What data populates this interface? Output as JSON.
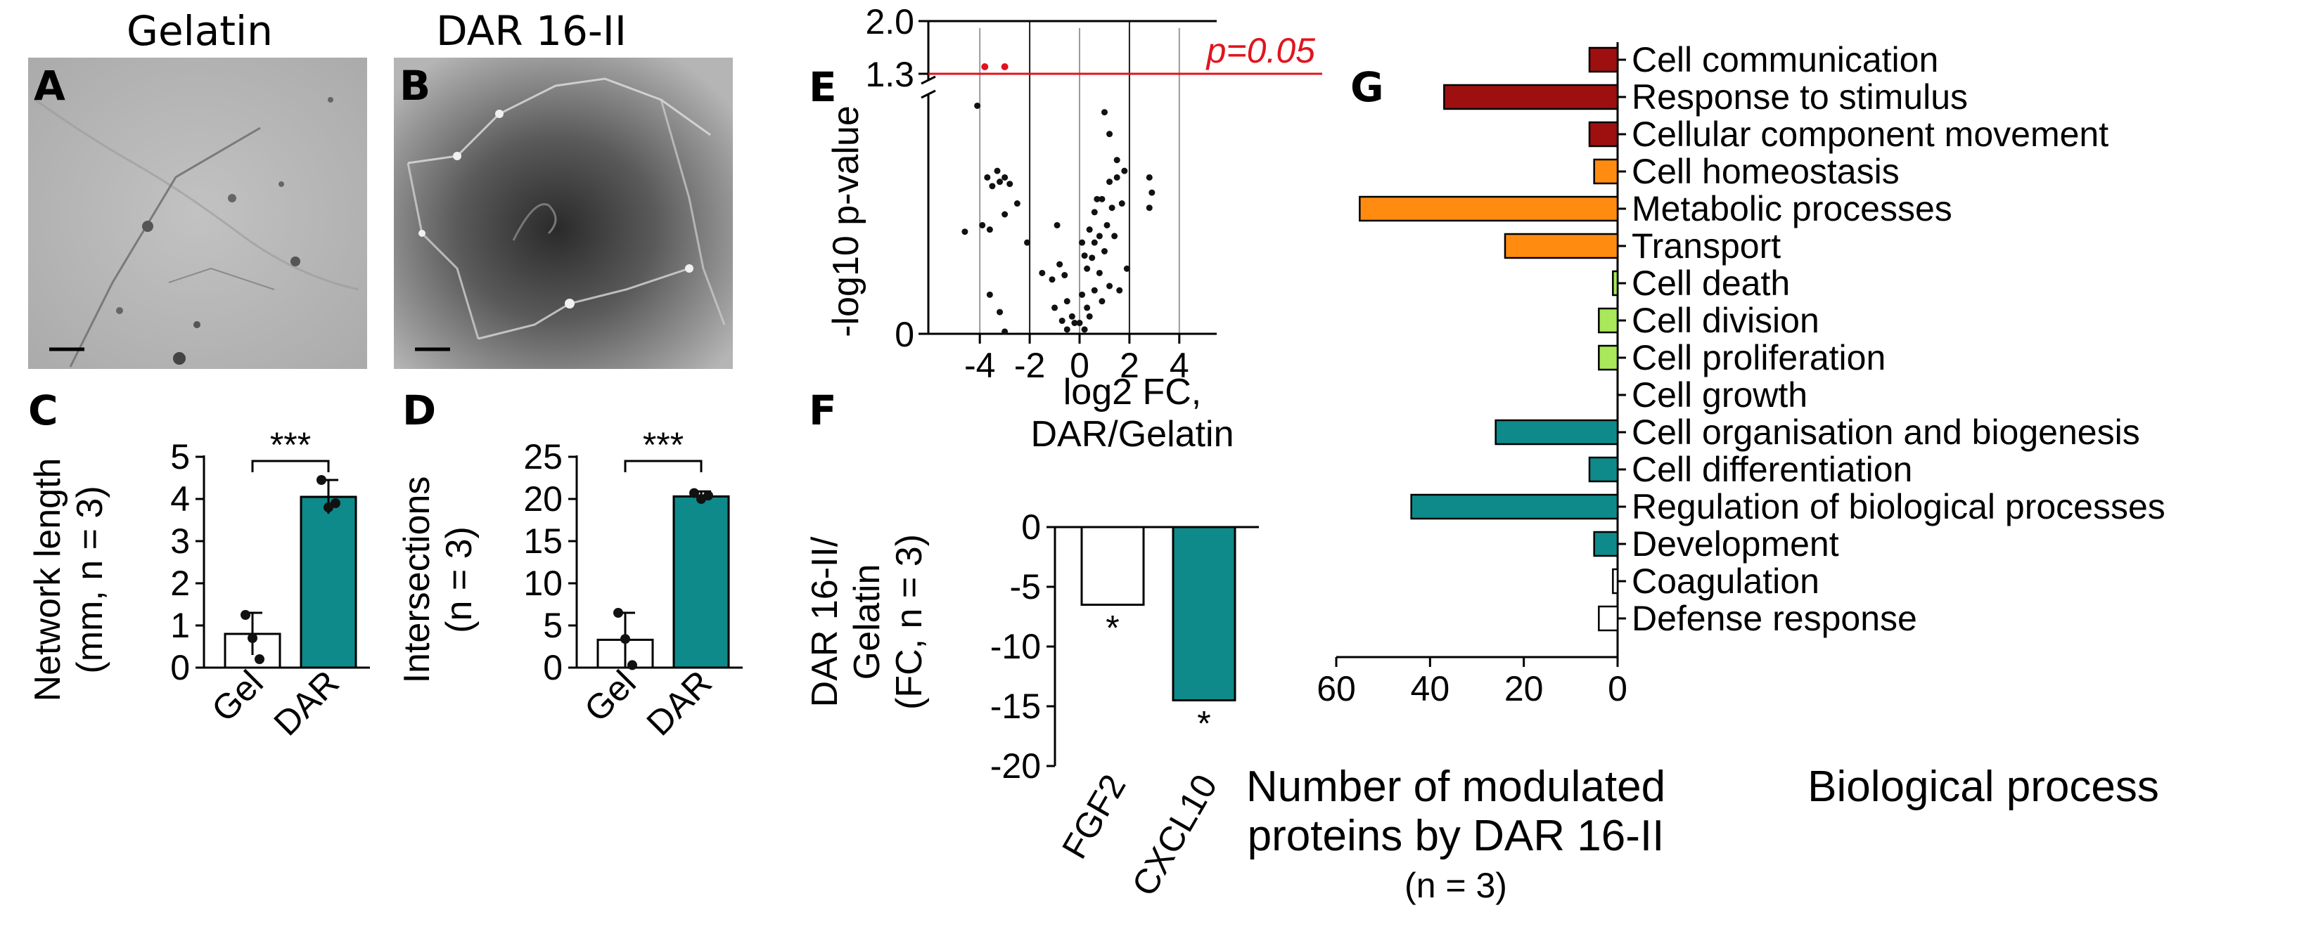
{
  "panels": {
    "A": {
      "letter": "A",
      "title": "Gelatin"
    },
    "B": {
      "letter": "B",
      "title": "DAR 16-II"
    },
    "C": {
      "letter": "C"
    },
    "D": {
      "letter": "D"
    },
    "E": {
      "letter": "E"
    },
    "F": {
      "letter": "F"
    },
    "G": {
      "letter": "G"
    }
  },
  "colors": {
    "teal": "#0e8a8a",
    "dark_red": "#9e1010",
    "orange": "#ff8c10",
    "light_green": "#a8e85a",
    "white": "#ffffff",
    "pvalue_line": "#e0141e"
  },
  "chart_data": [
    {
      "id": "C",
      "type": "bar",
      "ylabel_line1": "Network length",
      "ylabel_line2": "(mm, n = 3)",
      "categories": [
        "Gel",
        "DAR"
      ],
      "values": [
        0.8,
        4.05
      ],
      "errors": [
        0.5,
        0.4
      ],
      "points": [
        [
          1.25,
          0.7,
          0.2
        ],
        [
          4.45,
          3.8,
          3.9
        ]
      ],
      "ylim": [
        0,
        5
      ],
      "yticks": [
        0,
        1,
        2,
        3,
        4,
        5
      ],
      "significance": "***"
    },
    {
      "id": "D",
      "type": "bar",
      "ylabel_line1": "Intersections",
      "ylabel_line2": "(n = 3)",
      "categories": [
        "Gel",
        "DAR"
      ],
      "values": [
        3.3,
        20.3
      ],
      "errors": [
        3.2,
        0.6
      ],
      "points": [
        [
          6.5,
          3.4,
          0.3
        ],
        [
          20.7,
          20.0,
          20.4
        ]
      ],
      "ylim": [
        0,
        25
      ],
      "yticks": [
        0,
        5,
        10,
        15,
        20,
        25
      ],
      "significance": "***"
    },
    {
      "id": "E",
      "type": "scatter",
      "ylabel": "-log10 p-value",
      "xlabel_line1": "log2 FC,",
      "xlabel_line2": "DAR/Gelatin",
      "xlim": [
        -5.5,
        5.5
      ],
      "xticks": [
        -4,
        -2,
        0,
        2,
        4
      ],
      "yticks": [
        "0",
        "1.3",
        "2.0"
      ],
      "threshold_label": "p=0.05",
      "significant_points": [
        [
          -3.8,
          1.35
        ],
        [
          -3.0,
          1.33
        ]
      ],
      "points": [
        [
          -4.1,
          1.05
        ],
        [
          -3.7,
          0.72
        ],
        [
          -3.5,
          0.68
        ],
        [
          -3.3,
          0.75
        ],
        [
          -3.2,
          0.7
        ],
        [
          -3.0,
          0.72
        ],
        [
          -2.8,
          0.69
        ],
        [
          -3.6,
          0.48
        ],
        [
          -3.0,
          0.55
        ],
        [
          -3.9,
          0.5
        ],
        [
          -4.6,
          0.47
        ],
        [
          -2.5,
          0.6
        ],
        [
          -2.1,
          0.42
        ],
        [
          -3.2,
          0.1
        ],
        [
          -3.0,
          0.01
        ],
        [
          -3.6,
          0.18
        ],
        [
          -1.5,
          0.28
        ],
        [
          -1.1,
          0.25
        ],
        [
          -0.8,
          0.32
        ],
        [
          -0.6,
          0.27
        ],
        [
          -1.0,
          0.12
        ],
        [
          -0.5,
          0.15
        ],
        [
          -0.3,
          0.08
        ],
        [
          -0.2,
          0.05
        ],
        [
          0.0,
          0.05
        ],
        [
          -0.5,
          0.02
        ],
        [
          -0.7,
          0.06
        ],
        [
          0.2,
          0.02
        ],
        [
          0.4,
          0.08
        ],
        [
          0.1,
          0.18
        ],
        [
          0.3,
          0.3
        ],
        [
          0.6,
          0.2
        ],
        [
          0.8,
          0.28
        ],
        [
          0.2,
          0.36
        ],
        [
          0.4,
          0.48
        ],
        [
          0.6,
          0.56
        ],
        [
          0.9,
          0.62
        ],
        [
          1.2,
          0.7
        ],
        [
          1.5,
          0.8
        ],
        [
          1.3,
          0.58
        ],
        [
          1.1,
          0.5
        ],
        [
          0.8,
          0.45
        ],
        [
          0.6,
          0.42
        ],
        [
          1.0,
          1.02
        ],
        [
          1.2,
          0.92
        ],
        [
          1.5,
          0.72
        ],
        [
          1.7,
          0.6
        ],
        [
          1.4,
          0.45
        ],
        [
          1.9,
          0.3
        ],
        [
          1.6,
          0.2
        ],
        [
          1.2,
          0.22
        ],
        [
          0.9,
          0.15
        ],
        [
          2.8,
          0.72
        ],
        [
          2.9,
          0.65
        ],
        [
          2.8,
          0.58
        ],
        [
          1.8,
          0.75
        ],
        [
          0.5,
          0.35
        ],
        [
          0.7,
          0.62
        ],
        [
          1.0,
          0.38
        ],
        [
          0.1,
          0.42
        ],
        [
          0.3,
          0.12
        ],
        [
          -0.9,
          0.5
        ]
      ]
    },
    {
      "id": "F",
      "type": "bar",
      "ylabel_line1": "DAR 16-II/",
      "ylabel_line2": "Gelatin",
      "ylabel_line3": "(FC, n = 3)",
      "categories": [
        "FGF2",
        "CXCL10"
      ],
      "values": [
        -6.5,
        -14.5
      ],
      "ylim": [
        -20,
        0
      ],
      "yticks": [
        0,
        -5,
        -10,
        -15,
        -20
      ],
      "significance": [
        "*",
        "*"
      ]
    },
    {
      "id": "G",
      "type": "bar",
      "orientation": "horizontal",
      "xlim": [
        0,
        60
      ],
      "xticks": [
        60,
        40,
        20,
        0
      ],
      "xlabel_line1": "Number of modulated",
      "xlabel_line2": "proteins by DAR 16-II",
      "xlabel_line3": "(n = 3)",
      "category_axis_label": "Biological process",
      "categories": [
        "Cell communication",
        "Response to stimulus",
        "Cellular component movement",
        "Cell homeostasis",
        "Metabolic processes",
        "Transport",
        "Cell death",
        "Cell division",
        "Cell proliferation",
        "Cell growth",
        "Cell organisation and biogenesis",
        "Cell differentiation",
        "Regulation of biological processes",
        "Development",
        "Coagulation",
        "Defense response"
      ],
      "values": [
        6,
        37,
        6,
        5,
        55,
        24,
        1,
        4,
        4,
        0,
        26,
        6,
        44,
        5,
        1,
        4
      ],
      "color_keys": [
        "dark_red",
        "dark_red",
        "dark_red",
        "orange",
        "orange",
        "orange",
        "light_green",
        "light_green",
        "light_green",
        "light_green",
        "teal",
        "teal",
        "teal",
        "teal",
        "white",
        "white"
      ]
    }
  ]
}
